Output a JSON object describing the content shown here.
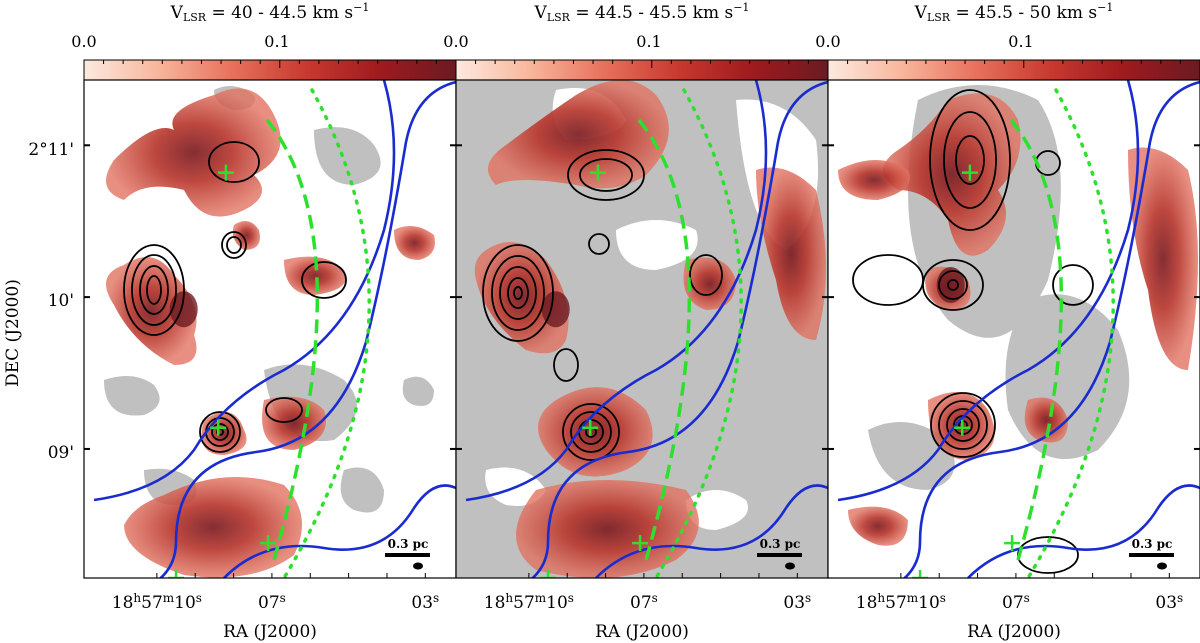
{
  "chart_data": [
    {
      "type": "heatmap",
      "title_main": "V",
      "title_sub": "LSR",
      "title_rest": " = 40 - 44.5 km s",
      "title_sup": "−1",
      "colorbar_ticks": [
        "0.0",
        "0.1"
      ],
      "colorbar_range": [
        0.0,
        0.19
      ],
      "green_crosses": [
        [
          8.2,
          10.82
        ],
        [
          8.4,
          9.14
        ],
        [
          7.1,
          8.38
        ],
        [
          9.5,
          8.15
        ]
      ],
      "peak_position": [
        9.3,
        9.92
      ]
    },
    {
      "type": "heatmap",
      "title_main": "V",
      "title_sub": "LSR",
      "title_rest": " = 44.5 - 45.5 km s",
      "title_sup": "−1",
      "colorbar_ticks": [
        "0.0",
        "0.1"
      ],
      "colorbar_range": [
        0.0,
        0.19
      ],
      "green_crosses": [
        [
          8.2,
          10.82
        ],
        [
          8.4,
          9.14
        ],
        [
          7.1,
          8.38
        ],
        [
          9.5,
          8.15
        ]
      ],
      "peak_position": [
        9.3,
        9.92
      ]
    },
    {
      "type": "heatmap",
      "title_main": "V",
      "title_sub": "LSR",
      "title_rest": " = 45.5 - 50 km s",
      "title_sup": "−1",
      "colorbar_ticks": [
        "0.0",
        "0.1"
      ],
      "colorbar_range": [
        0.0,
        0.19
      ],
      "green_crosses": [
        [
          8.2,
          10.82
        ],
        [
          8.4,
          9.14
        ],
        [
          7.1,
          8.38
        ],
        [
          9.5,
          8.15
        ]
      ],
      "peak_position": [
        8.7,
        10.08
      ]
    }
  ],
  "axes": {
    "xlabel": "RA (J2000)",
    "ylabel": "DEC (J2000)",
    "x_ticks": [
      {
        "value": 10,
        "h": "18",
        "m": "57",
        "s": "10",
        "first": true
      },
      {
        "value": 7,
        "s": "07"
      },
      {
        "value": 3,
        "s": "03"
      }
    ],
    "y_ticks": [
      {
        "value": 11,
        "label": "2°11'"
      },
      {
        "value": 10,
        "label": "10'"
      },
      {
        "value": 9,
        "label": "09'"
      }
    ],
    "xlim": [
      11.9,
      2.2
    ],
    "ylim": [
      8.15,
      11.43
    ]
  },
  "scale_bar": "0.3 pc",
  "colors": {
    "grey_mask": "#c0c0c0",
    "colormap": [
      "#fde9df",
      "#f8b69b",
      "#e8705c",
      "#c8382e",
      "#9e1a1e",
      "#6b1a22"
    ],
    "contour_black": "#000000",
    "contour_blue": "#1a2ccf",
    "arc_green": "#2ee02e"
  }
}
